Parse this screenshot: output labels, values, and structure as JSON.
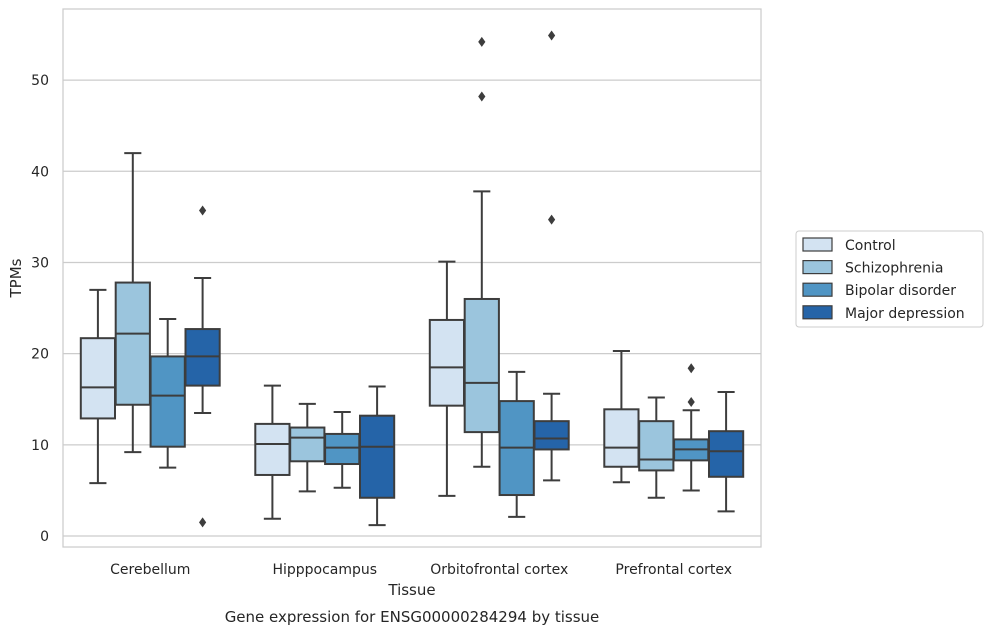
{
  "chart_data": {
    "type": "box",
    "title": "Gene expression for ENSG00000284294 by tissue",
    "xlabel": "Tissue",
    "ylabel": "TPMs",
    "ylim": [
      -1.2,
      57.8
    ],
    "y_ticks": [
      0,
      10,
      20,
      30,
      40,
      50
    ],
    "grid": "horizontal",
    "legend_position": "right",
    "categories": [
      "Cerebellum",
      "Hipppocampus",
      "Orbitofrontal cortex",
      "Prefrontal cortex"
    ],
    "series": [
      {
        "name": "Control",
        "color": "#d3e3f2",
        "boxes": [
          {
            "whisker_low": 5.8,
            "q1": 12.9,
            "median": 16.3,
            "q3": 21.7,
            "whisker_high": 27.0,
            "outliers": []
          },
          {
            "whisker_low": 1.9,
            "q1": 6.7,
            "median": 10.1,
            "q3": 12.3,
            "whisker_high": 16.5,
            "outliers": []
          },
          {
            "whisker_low": 4.4,
            "q1": 14.3,
            "median": 18.5,
            "q3": 23.7,
            "whisker_high": 30.1,
            "outliers": []
          },
          {
            "whisker_low": 5.9,
            "q1": 7.6,
            "median": 9.7,
            "q3": 13.9,
            "whisker_high": 20.3,
            "outliers": []
          }
        ]
      },
      {
        "name": "Schizophrenia",
        "color": "#9bc5dd",
        "boxes": [
          {
            "whisker_low": 9.2,
            "q1": 14.4,
            "median": 22.2,
            "q3": 27.8,
            "whisker_high": 42.0,
            "outliers": []
          },
          {
            "whisker_low": 4.9,
            "q1": 8.2,
            "median": 10.8,
            "q3": 11.9,
            "whisker_high": 14.5,
            "outliers": []
          },
          {
            "whisker_low": 7.6,
            "q1": 11.4,
            "median": 16.8,
            "q3": 26.0,
            "whisker_high": 37.8,
            "outliers": [
              48.2,
              54.2
            ]
          },
          {
            "whisker_low": 4.2,
            "q1": 7.2,
            "median": 8.4,
            "q3": 12.6,
            "whisker_high": 15.2,
            "outliers": []
          }
        ]
      },
      {
        "name": "Bipolar disorder",
        "color": "#5095c4",
        "boxes": [
          {
            "whisker_low": 7.5,
            "q1": 9.8,
            "median": 15.4,
            "q3": 19.7,
            "whisker_high": 23.8,
            "outliers": []
          },
          {
            "whisker_low": 5.3,
            "q1": 7.9,
            "median": 9.7,
            "q3": 11.2,
            "whisker_high": 13.6,
            "outliers": []
          },
          {
            "whisker_low": 2.1,
            "q1": 4.5,
            "median": 9.7,
            "q3": 14.8,
            "whisker_high": 18.0,
            "outliers": []
          },
          {
            "whisker_low": 5.0,
            "q1": 8.3,
            "median": 9.5,
            "q3": 10.6,
            "whisker_high": 13.8,
            "outliers": [
              14.7,
              18.4
            ]
          }
        ]
      },
      {
        "name": "Major depression",
        "color": "#2564a8",
        "boxes": [
          {
            "whisker_low": 13.5,
            "q1": 16.5,
            "median": 19.7,
            "q3": 22.7,
            "whisker_high": 28.3,
            "outliers": [
              1.5,
              35.7
            ]
          },
          {
            "whisker_low": 1.2,
            "q1": 4.2,
            "median": 9.8,
            "q3": 13.2,
            "whisker_high": 16.4,
            "outliers": []
          },
          {
            "whisker_low": 6.1,
            "q1": 9.5,
            "median": 10.7,
            "q3": 12.6,
            "whisker_high": 15.6,
            "outliers": [
              34.7,
              54.9
            ]
          },
          {
            "whisker_low": 2.7,
            "q1": 6.5,
            "median": 9.3,
            "q3": 11.5,
            "whisker_high": 15.8,
            "outliers": []
          }
        ]
      }
    ]
  }
}
